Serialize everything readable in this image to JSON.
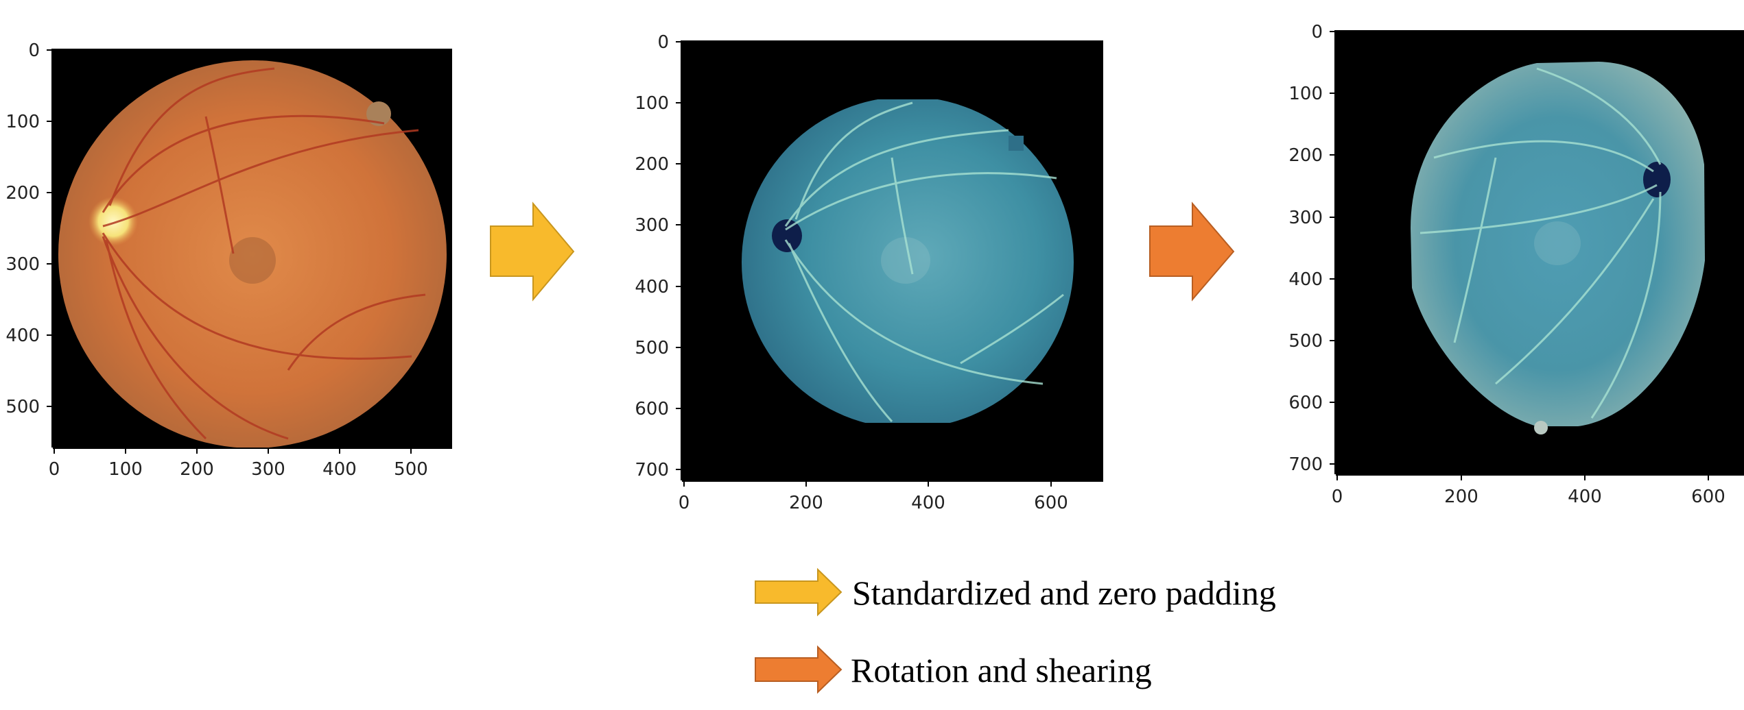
{
  "panels": [
    {
      "id": "original",
      "image_kind": "fundus-color",
      "y_ticks": [
        "0",
        "100",
        "200",
        "300",
        "400",
        "500"
      ],
      "x_ticks": [
        "0",
        "100",
        "200",
        "300",
        "400",
        "500"
      ]
    },
    {
      "id": "standardized",
      "image_kind": "fundus-standardized",
      "y_ticks": [
        "0",
        "100",
        "200",
        "300",
        "400",
        "500",
        "600",
        "700"
      ],
      "x_ticks": [
        "0",
        "200",
        "400",
        "600"
      ]
    },
    {
      "id": "augmented",
      "image_kind": "fundus-rotated-sheared",
      "y_ticks": [
        "0",
        "100",
        "200",
        "300",
        "400",
        "500",
        "600",
        "700"
      ],
      "x_ticks": [
        "0",
        "200",
        "400",
        "600"
      ]
    }
  ],
  "arrows": [
    {
      "name": "standardize-arrow",
      "color": "#F8BA2C"
    },
    {
      "name": "augment-arrow",
      "color": "#ED7D31"
    }
  ],
  "legend": {
    "standardize_label": "Standardized and zero padding",
    "augment_label": "Rotation and shearing",
    "standardize_color": "#F8BA2C",
    "augment_color": "#ED7D31"
  }
}
